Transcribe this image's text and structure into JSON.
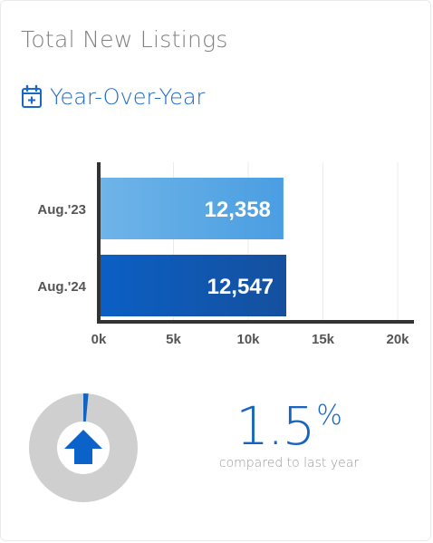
{
  "header": {
    "title": "Total New Listings",
    "subtitle": "Year-Over-Year"
  },
  "icons": {
    "subtitle_icon": "calendar-plus-icon",
    "change_icon": "arrow-up-icon"
  },
  "colors": {
    "accent": "#1a66c9",
    "bar_aug23": "#5aa8e6",
    "bar_aug24": "#1060bf",
    "donut_bg": "#cfcfcf"
  },
  "chart_data": {
    "type": "bar",
    "orientation": "horizontal",
    "categories": [
      "Aug.'23",
      "Aug.'24"
    ],
    "values": [
      12358,
      12547
    ],
    "value_labels": [
      "12,358",
      "12,547"
    ],
    "xlim": [
      0,
      20000
    ],
    "xticks": [
      0,
      5000,
      10000,
      15000,
      20000
    ],
    "xtick_labels": [
      "0k",
      "5k",
      "10k",
      "15k",
      "20k"
    ],
    "grid": true
  },
  "change": {
    "value": "1.5",
    "unit": "%",
    "caption": "compared to last year",
    "fraction": 0.015
  }
}
